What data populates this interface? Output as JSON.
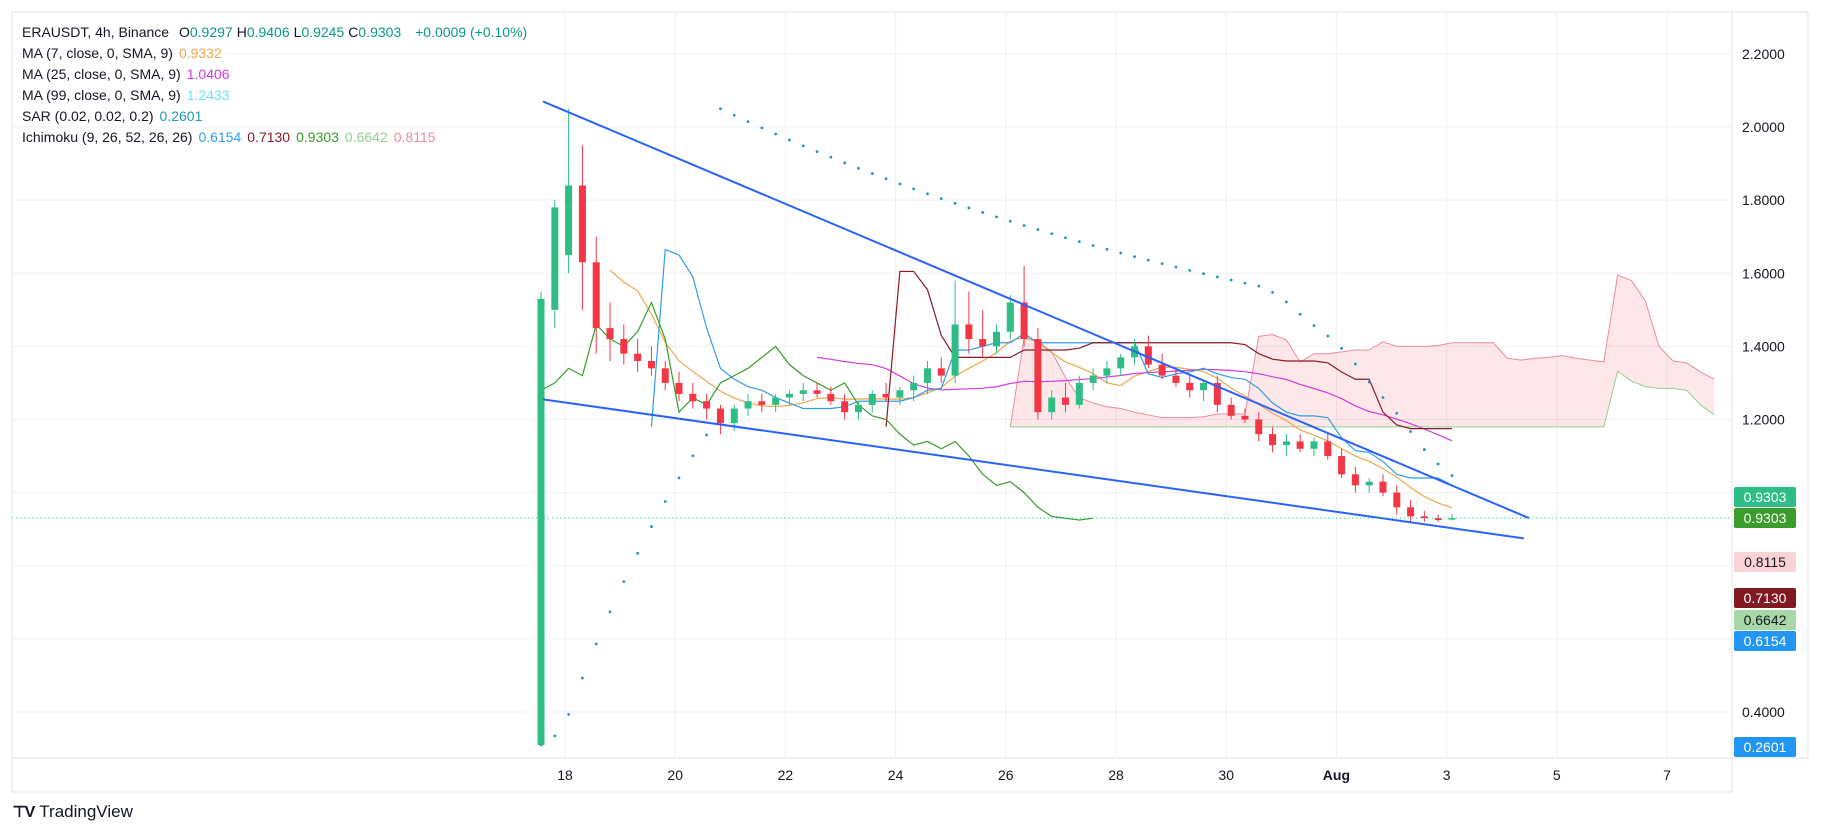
{
  "header": {
    "symbol": "ERAUSDT, 4h, Binance",
    "ohlc": [
      {
        "k": "O",
        "v": "0.9297"
      },
      {
        "k": "H",
        "v": "0.9406"
      },
      {
        "k": "L",
        "v": "0.9245"
      },
      {
        "k": "C",
        "v": "0.9303"
      }
    ],
    "change": "+0.0009 (+0.10%)"
  },
  "indicators": [
    {
      "label": "MA (7, close, 0, SMA, 9)",
      "values": [
        {
          "v": "0.9332",
          "color": "#f0a64c"
        }
      ]
    },
    {
      "label": "MA (25, close, 0, SMA, 9)",
      "values": [
        {
          "v": "1.0406",
          "color": "#d33be0"
        }
      ]
    },
    {
      "label": "MA (99, close, 0, SMA, 9)",
      "values": [
        {
          "v": "1.2433",
          "color": "#6fe3ec"
        }
      ]
    },
    {
      "label": "SAR (0.02, 0.02, 0.2)",
      "values": [
        {
          "v": "0.2601",
          "color": "#2196b8"
        }
      ]
    },
    {
      "label": "Ichimoku (9, 26, 52, 26, 26)",
      "values": [
        {
          "v": "0.6154",
          "color": "#2f9ee8"
        },
        {
          "v": "0.7130",
          "color": "#8a1a26"
        },
        {
          "v": "0.9303",
          "color": "#3a9c2a"
        },
        {
          "v": "0.6642",
          "color": "#8fd18f"
        },
        {
          "v": "0.8115",
          "color": "#f08aa0"
        }
      ]
    }
  ],
  "brand": "TradingView",
  "colors": {
    "up": "#26a69a",
    "up_candle": "#2ebd85",
    "down": "#f23645",
    "trendline": "#2962ff",
    "grid": "#eef0f3"
  },
  "price_tags": [
    {
      "text": "0.9303",
      "bg": "#2ebd85",
      "fg": "#ffffff"
    },
    {
      "text": "0.9303",
      "bg": "#3a9c2a",
      "fg": "#ffffff"
    },
    {
      "text": "0.8115",
      "bg": "#fbd3d6",
      "fg": "#131722"
    },
    {
      "text": "0.7130",
      "bg": "#801922",
      "fg": "#ffffff"
    },
    {
      "text": "0.6642",
      "bg": "#a8d8a8",
      "fg": "#131722"
    },
    {
      "text": "0.6154",
      "bg": "#2196f3",
      "fg": "#ffffff"
    },
    {
      "text": "0.2601",
      "bg": "#2196f3",
      "fg": "#ffffff"
    }
  ],
  "chart_data": {
    "type": "candlestick",
    "symbol": "ERAUSDT",
    "interval": "4h",
    "exchange": "Binance",
    "y_ticks": [
      "2.2000",
      "2.0000",
      "1.8000",
      "1.6000",
      "1.4000",
      "1.2000",
      "0.4000"
    ],
    "x_ticks": [
      "18",
      "20",
      "22",
      "24",
      "26",
      "28",
      "30",
      "Aug",
      "3",
      "5",
      "7"
    ],
    "ylim": [
      0.28,
      2.32
    ],
    "grid": true,
    "candles_ohlc": [
      [
        0.31,
        1.55,
        0.31,
        1.53
      ],
      [
        1.5,
        1.8,
        1.45,
        1.78
      ],
      [
        1.65,
        2.05,
        1.6,
        1.84
      ],
      [
        1.84,
        1.95,
        1.5,
        1.63
      ],
      [
        1.63,
        1.7,
        1.38,
        1.45
      ],
      [
        1.45,
        1.52,
        1.36,
        1.42
      ],
      [
        1.42,
        1.46,
        1.35,
        1.38
      ],
      [
        1.38,
        1.42,
        1.33,
        1.36
      ],
      [
        1.36,
        1.4,
        1.32,
        1.34
      ],
      [
        1.34,
        1.36,
        1.28,
        1.3
      ],
      [
        1.3,
        1.33,
        1.25,
        1.27
      ],
      [
        1.27,
        1.3,
        1.23,
        1.25
      ],
      [
        1.25,
        1.27,
        1.2,
        1.23
      ],
      [
        1.23,
        1.24,
        1.16,
        1.19
      ],
      [
        1.19,
        1.24,
        1.17,
        1.23
      ],
      [
        1.23,
        1.27,
        1.21,
        1.25
      ],
      [
        1.25,
        1.27,
        1.22,
        1.24
      ],
      [
        1.24,
        1.27,
        1.22,
        1.26
      ],
      [
        1.26,
        1.28,
        1.24,
        1.27
      ],
      [
        1.27,
        1.3,
        1.25,
        1.28
      ],
      [
        1.28,
        1.3,
        1.26,
        1.27
      ],
      [
        1.27,
        1.29,
        1.24,
        1.25
      ],
      [
        1.25,
        1.27,
        1.2,
        1.22
      ],
      [
        1.22,
        1.25,
        1.2,
        1.24
      ],
      [
        1.24,
        1.28,
        1.22,
        1.27
      ],
      [
        1.27,
        1.3,
        1.25,
        1.26
      ],
      [
        1.26,
        1.29,
        1.24,
        1.28
      ],
      [
        1.28,
        1.32,
        1.25,
        1.3
      ],
      [
        1.3,
        1.36,
        1.27,
        1.34
      ],
      [
        1.34,
        1.37,
        1.3,
        1.32
      ],
      [
        1.32,
        1.58,
        1.3,
        1.46
      ],
      [
        1.46,
        1.55,
        1.38,
        1.42
      ],
      [
        1.42,
        1.5,
        1.37,
        1.4
      ],
      [
        1.4,
        1.46,
        1.38,
        1.44
      ],
      [
        1.44,
        1.54,
        1.42,
        1.52
      ],
      [
        1.52,
        1.62,
        1.4,
        1.42
      ],
      [
        1.42,
        1.45,
        1.2,
        1.22
      ],
      [
        1.22,
        1.28,
        1.2,
        1.26
      ],
      [
        1.26,
        1.3,
        1.22,
        1.24
      ],
      [
        1.24,
        1.32,
        1.23,
        1.3
      ],
      [
        1.3,
        1.34,
        1.28,
        1.32
      ],
      [
        1.32,
        1.36,
        1.3,
        1.34
      ],
      [
        1.34,
        1.38,
        1.32,
        1.37
      ],
      [
        1.37,
        1.42,
        1.35,
        1.4
      ],
      [
        1.4,
        1.43,
        1.34,
        1.35
      ],
      [
        1.35,
        1.38,
        1.31,
        1.32
      ],
      [
        1.32,
        1.34,
        1.29,
        1.3
      ],
      [
        1.3,
        1.32,
        1.26,
        1.28
      ],
      [
        1.28,
        1.31,
        1.25,
        1.3
      ],
      [
        1.3,
        1.32,
        1.22,
        1.24
      ],
      [
        1.24,
        1.26,
        1.2,
        1.21
      ],
      [
        1.21,
        1.23,
        1.19,
        1.2
      ],
      [
        1.2,
        1.22,
        1.14,
        1.16
      ],
      [
        1.16,
        1.18,
        1.11,
        1.13
      ],
      [
        1.13,
        1.16,
        1.1,
        1.14
      ],
      [
        1.14,
        1.16,
        1.11,
        1.12
      ],
      [
        1.12,
        1.15,
        1.1,
        1.14
      ],
      [
        1.14,
        1.16,
        1.09,
        1.1
      ],
      [
        1.1,
        1.12,
        1.04,
        1.05
      ],
      [
        1.05,
        1.07,
        1.0,
        1.02
      ],
      [
        1.02,
        1.04,
        1.0,
        1.03
      ],
      [
        1.03,
        1.05,
        0.99,
        1.0
      ],
      [
        1.0,
        1.02,
        0.94,
        0.96
      ],
      [
        0.96,
        0.98,
        0.92,
        0.935
      ],
      [
        0.935,
        0.95,
        0.92,
        0.93
      ],
      [
        0.93,
        0.94,
        0.92,
        0.925
      ],
      [
        0.9297,
        0.9406,
        0.9245,
        0.9303
      ]
    ],
    "series": [
      {
        "name": "MA (7, close, 0, SMA, 9)",
        "color": "#f0a64c",
        "last": 0.9332
      },
      {
        "name": "MA (25, close, 0, SMA, 9)",
        "color": "#d33be0",
        "last": 1.0406
      },
      {
        "name": "MA (99, close, 0, SMA, 9)",
        "color": "#6fe3ec",
        "last": 1.2433
      },
      {
        "name": "SAR (0.02, 0.02, 0.2)",
        "color": "#2196b8",
        "last": 0.2601
      },
      {
        "name": "Ichimoku (9, 26, 52, 26, 26)",
        "color": "#3a9c2a",
        "last": 0.9303
      }
    ],
    "trendlines": [
      {
        "from": [
          17.6,
          2.07
        ],
        "to": [
          35.5,
          0.93
        ]
      },
      {
        "from": [
          17.6,
          1.255
        ],
        "to": [
          35.4,
          0.875
        ]
      }
    ]
  }
}
